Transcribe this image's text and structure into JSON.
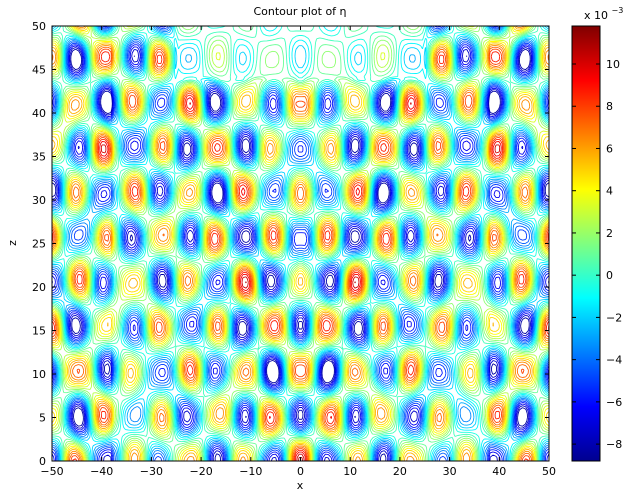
{
  "chart_data": {
    "type": "contour",
    "title": "Contour plot of η",
    "xlabel": "x",
    "ylabel": "z",
    "xlim": [
      -50,
      50
    ],
    "ylim": [
      0,
      50
    ],
    "x_ticks": [
      -50,
      -40,
      -30,
      -20,
      -10,
      0,
      10,
      20,
      30,
      40,
      50
    ],
    "y_ticks": [
      0,
      5,
      10,
      15,
      20,
      25,
      30,
      35,
      40,
      45,
      50
    ],
    "x_tick_labels": [
      "−50",
      "−40",
      "−30",
      "−20",
      "−10",
      "0",
      "10",
      "20",
      "30",
      "40",
      "50"
    ],
    "y_tick_labels": [
      "0",
      "5",
      "10",
      "15",
      "20",
      "25",
      "30",
      "35",
      "40",
      "45",
      "50"
    ],
    "colorbar": {
      "colormap": "jet",
      "range": [
        -0.0088,
        0.0118
      ],
      "ticks": [
        -8,
        -6,
        -4,
        -2,
        0,
        2,
        4,
        6,
        8,
        10
      ],
      "tick_labels": [
        "−8",
        "−6",
        "−4",
        "−2",
        "0",
        "2",
        "4",
        "6",
        "8",
        "10"
      ],
      "scale_label": "x 10",
      "scale_exponent": "−3"
    },
    "field_description": "checkerboard-like pattern of positive and negative cells, symmetric about x = 0, with cell rows bending into V-shaped bands that diverge upward from the x = 0 line",
    "grid": false
  }
}
